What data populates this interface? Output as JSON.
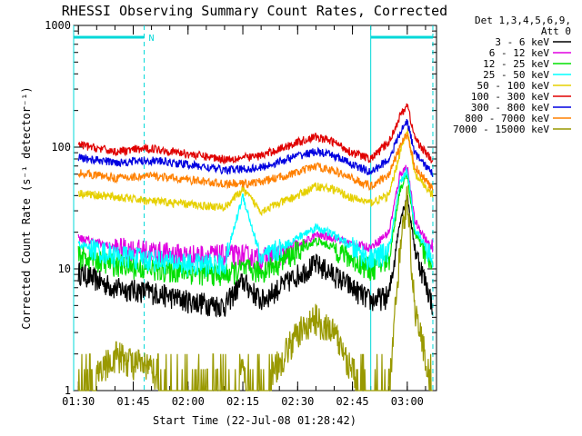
{
  "chart_data": {
    "type": "line",
    "title": "RHESSI Observing Summary Count Rates, Corrected",
    "xlabel": "Start Time (22-Jul-08 01:28:42)",
    "ylabel": "Corrected Count Rate (s⁻¹ detector⁻¹)",
    "yscale": "log",
    "ylim": [
      1,
      1000
    ],
    "xlim": [
      "01:28:42",
      "03:08:00"
    ],
    "x_ticks": [
      "01:30",
      "01:45",
      "02:00",
      "02:15",
      "02:30",
      "02:45",
      "03:00"
    ],
    "y_ticks": [
      {
        "value": 1,
        "label": "1"
      },
      {
        "value": 10,
        "label": "10"
      },
      {
        "value": 100,
        "label": "100"
      },
      {
        "value": 1000,
        "label": "1000"
      }
    ],
    "legend": {
      "header": [
        "Det 1,3,4,5,6,9,",
        "Att 0"
      ],
      "placement": "right"
    },
    "annotations": {
      "night_bar_label": "N",
      "night_intervals": [
        [
          "01:28:42",
          "01:48:00"
        ],
        [
          "02:50:00",
          "03:07:00"
        ]
      ],
      "dashed_markers": [
        "01:48:00",
        "03:07:00"
      ],
      "solid_markers": [
        "01:28:42",
        "02:50:00"
      ]
    },
    "x": [
      "01:30",
      "01:40",
      "01:50",
      "02:00",
      "02:10",
      "02:15",
      "02:20",
      "02:30",
      "02:35",
      "02:40",
      "02:45",
      "02:50",
      "02:55",
      "02:58",
      "03:00",
      "03:02",
      "03:07"
    ],
    "series": [
      {
        "name": "3 - 6 keV",
        "color": "#000000",
        "values": [
          9.5,
          7,
          6.5,
          5.5,
          5,
          8,
          5.5,
          9,
          11,
          9,
          7,
          5.5,
          6,
          25,
          40,
          15,
          5
        ]
      },
      {
        "name": "6 - 12 keV",
        "color": "#e000e0",
        "values": [
          18,
          15,
          14,
          13,
          13,
          13,
          12,
          15,
          19,
          18,
          16,
          15,
          20,
          60,
          70,
          25,
          14
        ]
      },
      {
        "name": "12 - 25 keV",
        "color": "#00e000",
        "values": [
          13,
          11,
          10,
          9.5,
          9,
          10,
          9.5,
          14,
          17,
          15,
          12,
          10,
          12,
          45,
          60,
          20,
          10
        ]
      },
      {
        "name": "25 - 50 keV",
        "color": "#00ffff",
        "values": [
          16,
          13,
          12,
          11,
          11,
          40,
          12,
          18,
          22,
          19,
          15,
          12,
          14,
          50,
          65,
          22,
          12
        ]
      },
      {
        "name": "50 - 100 keV",
        "color": "#e6d000",
        "values": [
          42,
          39,
          36,
          34,
          32,
          45,
          30,
          40,
          48,
          45,
          38,
          35,
          40,
          90,
          140,
          60,
          40
        ]
      },
      {
        "name": "100 - 300 keV",
        "color": "#e00000",
        "values": [
          105,
          92,
          98,
          88,
          80,
          82,
          85,
          110,
          122,
          110,
          90,
          80,
          110,
          180,
          225,
          120,
          75
        ]
      },
      {
        "name": "300 - 800 keV",
        "color": "#0000e0",
        "values": [
          82,
          75,
          78,
          72,
          65,
          66,
          68,
          85,
          92,
          85,
          72,
          62,
          80,
          130,
          165,
          90,
          60
        ]
      },
      {
        "name": "800 - 7000 keV",
        "color": "#ff8000",
        "values": [
          62,
          56,
          58,
          54,
          50,
          50,
          52,
          62,
          70,
          64,
          55,
          48,
          60,
          100,
          130,
          70,
          45
        ]
      },
      {
        "name": "7000 - 15000 keV",
        "color": "#999900",
        "values": [
          1,
          2,
          1.5,
          1,
          1,
          1.5,
          1,
          3,
          4,
          3,
          1.5,
          1,
          1,
          15,
          40,
          5,
          1
        ]
      }
    ]
  }
}
